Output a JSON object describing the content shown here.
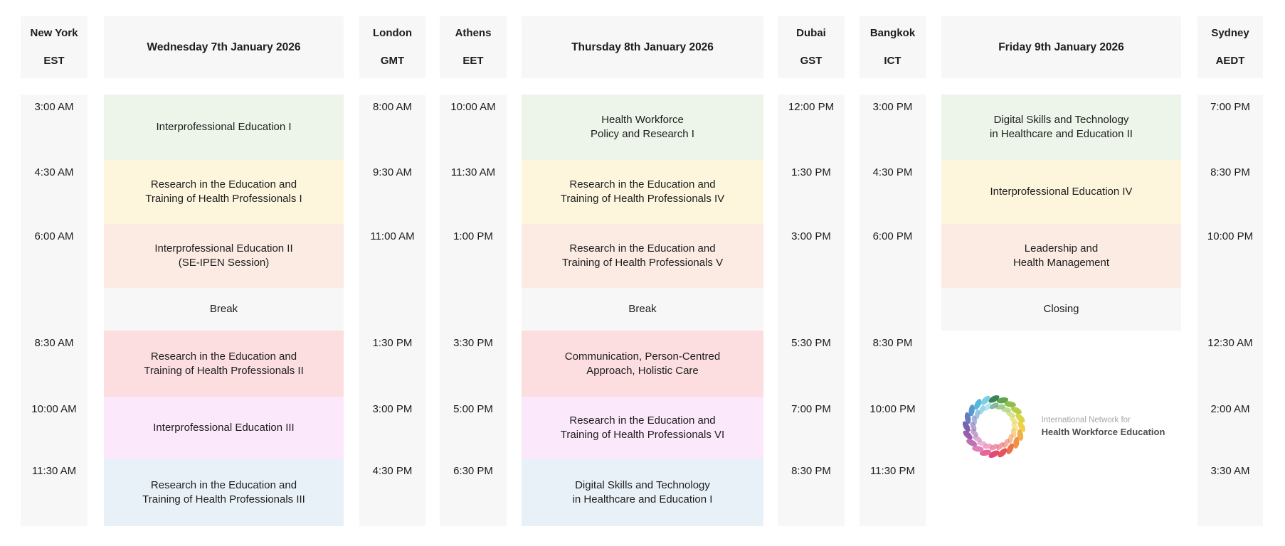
{
  "theme": {
    "page_bg": "#ffffff",
    "panel_bg": "#f7f7f7",
    "text": "#1d1d1d",
    "session_colors": {
      "green": "#edf4ea",
      "yellow": "#fdf6dd",
      "peach": "#fcebe2",
      "gray": "#f7f7f7",
      "pink": "#fcdee1",
      "magenta": "#fbe8fa",
      "blue": "#e9f1f8"
    }
  },
  "timezones": [
    {
      "city": "New York",
      "tz": "EST",
      "times": [
        "3:00 AM",
        "4:30 AM",
        "6:00 AM",
        "8:30 AM",
        "10:00 AM",
        "11:30 AM"
      ]
    },
    {
      "city": "London",
      "tz": "GMT",
      "times": [
        "8:00 AM",
        "9:30 AM",
        "11:00 AM",
        "1:30 PM",
        "3:00 PM",
        "4:30 PM"
      ]
    },
    {
      "city": "Athens",
      "tz": "EET",
      "times": [
        "10:00 AM",
        "11:30 AM",
        "1:00 PM",
        "3:30 PM",
        "5:00 PM",
        "6:30 PM"
      ]
    },
    {
      "city": "Dubai",
      "tz": "GST",
      "times": [
        "12:00 PM",
        "1:30 PM",
        "3:00 PM",
        "5:30 PM",
        "7:00 PM",
        "8:30 PM"
      ]
    },
    {
      "city": "Bangkok",
      "tz": "ICT",
      "times": [
        "3:00 PM",
        "4:30 PM",
        "6:00 PM",
        "8:30 PM",
        "10:00 PM",
        "11:30 PM"
      ]
    },
    {
      "city": "Sydney",
      "tz": "AEDT",
      "times": [
        "7:00 PM",
        "8:30 PM",
        "10:00 PM",
        "12:30 AM",
        "2:00 AM",
        "3:30 AM"
      ]
    }
  ],
  "days": [
    {
      "title": "Wednesday 7th January 2026",
      "sessions": [
        {
          "text": "Interprofessional Education I",
          "color": "#edf4ea"
        },
        {
          "text": "Research in the Education and\nTraining of Health Professionals I",
          "color": "#fdf6dd"
        },
        {
          "text": "Interprofessional Education II\n(SE-IPEN Session)",
          "color": "#fcebe2"
        },
        {
          "text": "Break",
          "color": "#f7f7f7"
        },
        {
          "text": "Research in the Education and\nTraining of Health Professionals II",
          "color": "#fcdee1"
        },
        {
          "text": "Interprofessional Education III",
          "color": "#fbe8fa"
        },
        {
          "text": "Research in the Education and\nTraining of Health Professionals III",
          "color": "#e9f1f8"
        }
      ]
    },
    {
      "title": "Thursday 8th January 2026",
      "sessions": [
        {
          "text": "Health Workforce\nPolicy and Research I",
          "color": "#edf4ea"
        },
        {
          "text": "Research in the Education and\nTraining of Health Professionals IV",
          "color": "#fdf6dd"
        },
        {
          "text": "Research in the Education and\nTraining of Health Professionals V",
          "color": "#fcebe2"
        },
        {
          "text": "Break",
          "color": "#f7f7f7"
        },
        {
          "text": "Communication, Person-Centred\nApproach, Holistic Care",
          "color": "#fcdee1"
        },
        {
          "text": "Research in the Education and\nTraining of Health Professionals VI",
          "color": "#fbe8fa"
        },
        {
          "text": "Digital Skills and Technology\nin Healthcare and Education I",
          "color": "#e9f1f8"
        }
      ]
    },
    {
      "title": "Friday 9th January 2026",
      "sessions": [
        {
          "text": "Digital Skills and Technology\nin Healthcare and Education II",
          "color": "#edf4ea"
        },
        {
          "text": "Interprofessional Education IV",
          "color": "#fdf6dd"
        },
        {
          "text": "Leadership and\nHealth Management",
          "color": "#fcebe2"
        },
        {
          "text": "Closing",
          "color": "#f7f7f7"
        }
      ]
    }
  ],
  "logo": {
    "line1": "International Network for",
    "line2": "Health Workforce Education",
    "colors": [
      "#2c7d4e",
      "#55a044",
      "#85bb40",
      "#b3cc3e",
      "#d8d23d",
      "#f0cc3d",
      "#f0ab3b",
      "#ee8c3c",
      "#ea6a45",
      "#e54a57",
      "#e23f6d",
      "#e75d93",
      "#e177b4",
      "#bb6ab2",
      "#9257a7",
      "#7558a8",
      "#5c74bb",
      "#4f93cb",
      "#4cb4da",
      "#74cde3"
    ]
  }
}
